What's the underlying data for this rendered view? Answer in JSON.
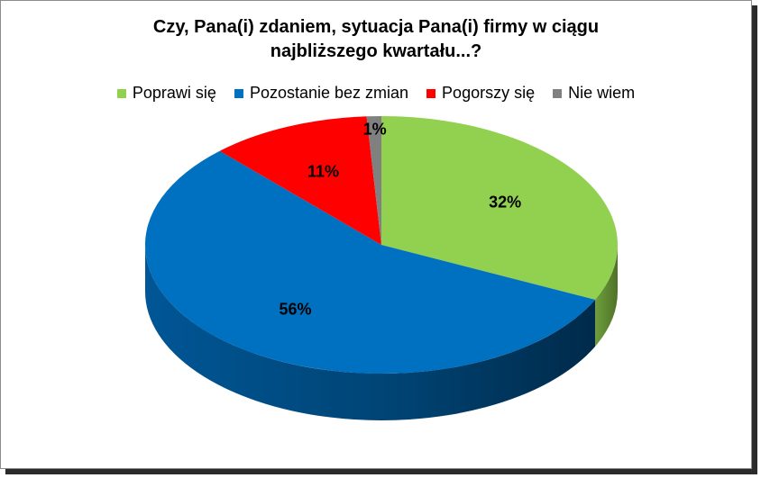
{
  "chart_data": {
    "type": "pie",
    "title_lines": [
      "Czy, Pana(i) zdaniem, sytuacja Pana(i) firmy w ciągu",
      "najbliższego kwartału...?"
    ],
    "categories": [
      "Poprawi się",
      "Pozostanie bez zmian",
      "Pogorszy się",
      "Nie wiem"
    ],
    "values": [
      32,
      56,
      11,
      1
    ],
    "labels": [
      "32%",
      "56%",
      "11%",
      "1%"
    ],
    "unit": "%",
    "colors": [
      "#92d050",
      "#0070c0",
      "#ff0000",
      "#808080"
    ],
    "legend_position": "top",
    "style": "3D pie"
  }
}
